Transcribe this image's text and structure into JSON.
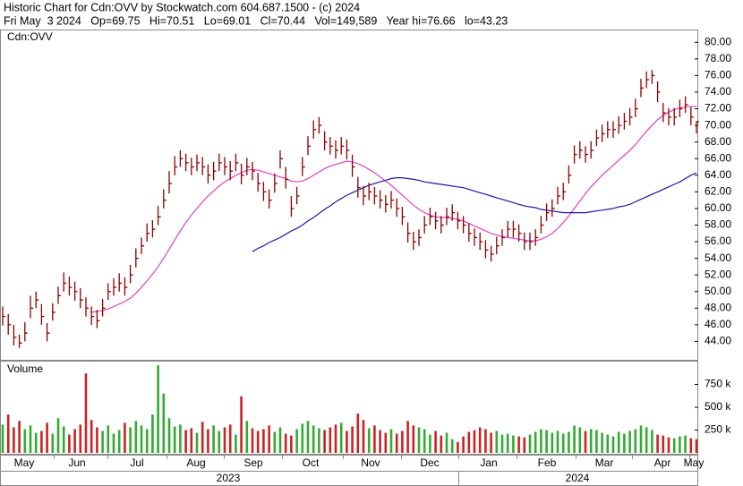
{
  "header": {
    "title": "Historic Chart for Cdn:OVV by Stockwatch.com 604.687.1500 - (c) 2024",
    "quote": "Fri May  3 2024   Op=69.75   Hi=70.51   Lo=69.01   Cl=70.44   Vol=149,589   Year hi=76.66   lo=43.23"
  },
  "time_axis": {
    "months": [
      "May",
      "Jun",
      "Jul",
      "Aug",
      "Sep",
      "Oct",
      "Nov",
      "Dec",
      "Jan",
      "Feb",
      "Mar",
      "Apr",
      "May"
    ],
    "years": [
      "2023",
      "2024"
    ]
  },
  "chart_data": [
    {
      "type": "ohlc",
      "title": "Cdn:OVV",
      "color": "#8b0000",
      "ylim": [
        42,
        81
      ],
      "yticks": [
        {
          "value": 44,
          "label": "44.00"
        },
        {
          "value": 46,
          "label": "46.00"
        },
        {
          "value": 48,
          "label": "48.00"
        },
        {
          "value": 50,
          "label": "50.00"
        },
        {
          "value": 52,
          "label": "52.00"
        },
        {
          "value": 54,
          "label": "54.00"
        },
        {
          "value": 56,
          "label": "56.00"
        },
        {
          "value": 58,
          "label": "58.00"
        },
        {
          "value": 60,
          "label": "60.00"
        },
        {
          "value": 62,
          "label": "62.00"
        },
        {
          "value": 64,
          "label": "64.00"
        },
        {
          "value": 66,
          "label": "66.00"
        },
        {
          "value": 68,
          "label": "68.00"
        },
        {
          "value": 70,
          "label": "70.00"
        },
        {
          "value": 72,
          "label": "72.00"
        },
        {
          "value": 74,
          "label": "74.00"
        },
        {
          "value": 76,
          "label": "76.00"
        },
        {
          "value": 78,
          "label": "78.00"
        },
        {
          "value": 80,
          "label": "80.00"
        }
      ],
      "high": [
        48.2,
        47.3,
        46,
        44.8,
        46.3,
        49.5,
        50,
        48.5,
        46.2,
        48.6,
        50.6,
        52.3,
        51.8,
        51.2,
        50.4,
        49.3,
        48.2,
        47.8,
        49.1,
        51,
        51.6,
        52.2,
        51.7,
        53.2,
        55.2,
        56.5,
        58.2,
        58.6,
        60.3,
        62.3,
        64.5,
        66.3,
        67,
        66.6,
        66.1,
        66.5,
        66.2,
        65.3,
        65.6,
        66.6,
        66.2,
        65.7,
        66.6,
        65.4,
        66.1,
        65.6,
        64.3,
        63.2,
        62.3,
        64.2,
        67,
        65,
        61.5,
        62.6,
        66.2,
        68.7,
        70.6,
        71,
        69.3,
        68.6,
        68.2,
        68.6,
        68.3,
        66.5,
        63.8,
        62.7,
        63.1,
        62.6,
        62.2,
        61.6,
        62.1,
        61.2,
        60.2,
        58.3,
        57.2,
        57.5,
        59.1,
        60.1,
        59.6,
        59.1,
        60.1,
        60.5,
        59.6,
        59.1,
        58.2,
        57.6,
        57.1,
        56.2,
        55.5,
        56.6,
        57.5,
        58.5,
        58.5,
        58.1,
        57.1,
        57.1,
        57.5,
        59.1,
        60.6,
        61.1,
        62.6,
        63.1,
        65.2,
        67.6,
        68.1,
        67.5,
        68.1,
        69.5,
        70.1,
        70.5,
        70.5,
        71.1,
        71.5,
        72.1,
        73.2,
        75.6,
        76.5,
        76.66,
        75.3,
        72.7,
        72.1,
        72.1,
        73.1,
        73.5,
        72.2,
        70.51
      ],
      "low": [
        45.9,
        44.8,
        43.5,
        43.23,
        44,
        46.8,
        48,
        46,
        44,
        46.5,
        48.5,
        50,
        49.5,
        48.9,
        48,
        47,
        46,
        45.6,
        47,
        49,
        49.5,
        50,
        49.5,
        51,
        52.9,
        54.5,
        56,
        56.5,
        58,
        60,
        61.8,
        64,
        65,
        64.5,
        64,
        64.5,
        64,
        63,
        63.4,
        64.5,
        64,
        63.4,
        64.5,
        62.9,
        64,
        63.4,
        62,
        60.9,
        60,
        61.9,
        64.8,
        62.4,
        59,
        60.5,
        63.9,
        66.4,
        68.4,
        69,
        67,
        66.5,
        66,
        66.5,
        65.9,
        63.8,
        61.3,
        60.4,
        61,
        60.5,
        60,
        59.5,
        60,
        59,
        58,
        55.9,
        55,
        55.5,
        57,
        58,
        57.5,
        57,
        58,
        58.5,
        57.5,
        57,
        56,
        55.5,
        55,
        54,
        53.6,
        54.5,
        55.5,
        56.5,
        56.5,
        56,
        55,
        55,
        55.5,
        57,
        58.5,
        59,
        60.5,
        61,
        63,
        65.4,
        66,
        65.5,
        66,
        67.5,
        68,
        68.5,
        68.5,
        69,
        69.5,
        70,
        71,
        73.4,
        74.5,
        75,
        72.8,
        70.4,
        70,
        70,
        71,
        71.5,
        70,
        69.01
      ],
      "close": [
        47,
        46,
        44.5,
        43.8,
        45,
        48,
        49,
        47,
        45,
        47.5,
        49.5,
        51,
        50.5,
        50,
        49,
        48,
        47,
        46.5,
        48,
        50,
        50.5,
        51,
        50.5,
        52,
        54,
        55.5,
        57,
        57.5,
        59,
        61,
        63,
        65,
        66,
        65.5,
        65,
        65.5,
        65,
        64,
        64.5,
        65.5,
        65,
        64.5,
        65.5,
        64,
        65,
        64.5,
        63,
        62,
        61,
        63,
        66,
        63.5,
        60,
        61.5,
        65,
        67.5,
        69.5,
        70,
        68,
        67.5,
        67,
        67.5,
        67,
        65,
        62.5,
        61.5,
        62,
        61.5,
        61,
        60.5,
        61,
        60,
        59,
        57,
        56,
        56.5,
        58,
        59,
        58.5,
        58,
        59,
        59.5,
        58.5,
        58,
        57,
        56.5,
        56,
        55,
        54.5,
        55.5,
        56.5,
        57.5,
        57.5,
        57,
        56,
        56,
        56.5,
        58,
        59.5,
        60,
        61.5,
        62,
        64,
        66.5,
        67,
        66.5,
        67,
        68.5,
        69,
        69.5,
        69.5,
        70,
        70.5,
        71,
        72,
        74.5,
        75.5,
        76,
        74,
        71.5,
        71,
        71,
        72,
        72.5,
        71,
        70.44
      ],
      "series": [
        {
          "color": "#e040c0",
          "values": [
            null,
            null,
            null,
            null,
            null,
            null,
            null,
            null,
            null,
            null,
            null,
            null,
            null,
            null,
            null,
            null,
            47.5,
            47.6,
            47.7,
            47.9,
            48.2,
            48.5,
            48.8,
            49.2,
            49.8,
            50.5,
            51.3,
            52.1,
            53,
            54,
            55.1,
            56.2,
            57.3,
            58.3,
            59.2,
            60,
            60.8,
            61.5,
            62.1,
            62.7,
            63.2,
            63.6,
            64,
            64.3,
            64.6,
            64.7,
            64.6,
            64.4,
            64.2,
            64,
            63.8,
            63.6,
            63.3,
            63.2,
            63.3,
            63.6,
            64,
            64.4,
            64.8,
            65.1,
            65.3,
            65.5,
            65.7,
            65.6,
            65.4,
            65.1,
            64.7,
            64.3,
            63.8,
            63.3,
            62.8,
            62.2,
            61.6,
            61,
            60.4,
            59.9,
            59.5,
            59.2,
            59,
            58.9,
            58.9,
            58.8,
            58.7,
            58.5,
            58.2,
            57.9,
            57.6,
            57.3,
            57,
            56.8,
            56.6,
            56.5,
            56.4,
            56.3,
            56.2,
            56.1,
            56.1,
            56.3,
            56.6,
            57,
            57.6,
            58.3,
            59.1,
            60,
            60.9,
            61.8,
            62.6,
            63.3,
            64,
            64.6,
            65.2,
            65.8,
            66.4,
            67,
            67.7,
            68.5,
            69.3,
            70,
            70.7,
            71.2,
            71.6,
            71.9,
            72.1,
            72.2,
            72.3,
            72.3
          ]
        },
        {
          "color": "#1a1aa0",
          "values": [
            null,
            null,
            null,
            null,
            null,
            null,
            null,
            null,
            null,
            null,
            null,
            null,
            null,
            null,
            null,
            null,
            null,
            null,
            null,
            null,
            null,
            null,
            null,
            null,
            null,
            null,
            null,
            null,
            null,
            null,
            null,
            null,
            null,
            null,
            null,
            null,
            null,
            null,
            null,
            null,
            null,
            null,
            null,
            null,
            null,
            54.8,
            55.2,
            55.5,
            55.9,
            56.2,
            56.5,
            56.9,
            57.3,
            57.6,
            58,
            58.5,
            58.9,
            59.4,
            59.9,
            60.3,
            60.8,
            61.2,
            61.6,
            61.9,
            62.2,
            62.5,
            62.8,
            63,
            63.2,
            63.4,
            63.6,
            63.7,
            63.7,
            63.6,
            63.5,
            63.4,
            63.2,
            63.1,
            63,
            62.9,
            62.8,
            62.7,
            62.6,
            62.5,
            62.3,
            62.1,
            61.9,
            61.7,
            61.5,
            61.3,
            61.1,
            60.9,
            60.7,
            60.5,
            60.3,
            60.2,
            60.1,
            59.9,
            59.8,
            59.7,
            59.6,
            59.5,
            59.5,
            59.5,
            59.5,
            59.5,
            59.6,
            59.7,
            59.8,
            59.9,
            60,
            60.2,
            60.3,
            60.5,
            60.8,
            61.1,
            61.4,
            61.7,
            62,
            62.3,
            62.6,
            62.9,
            63.2,
            63.6,
            64,
            64.3
          ]
        }
      ]
    },
    {
      "type": "volume",
      "title": "Volume",
      "up_color": "#33aa33",
      "down_color": "#cc2222",
      "ylim": [
        0,
        1000000
      ],
      "yticks": [
        {
          "value": 250000,
          "label": "250 k"
        },
        {
          "value": 500000,
          "label": "500 k"
        },
        {
          "value": 750000,
          "label": "750 k"
        }
      ],
      "values": [
        310000,
        420000,
        280000,
        350000,
        260000,
        300000,
        220000,
        240000,
        330000,
        210000,
        380000,
        290000,
        200000,
        260000,
        310000,
        870000,
        360000,
        280000,
        240000,
        300000,
        210000,
        250000,
        330000,
        280000,
        350000,
        300000,
        260000,
        420000,
        960000,
        650000,
        380000,
        290000,
        310000,
        250000,
        270000,
        220000,
        340000,
        260000,
        300000,
        240000,
        280000,
        310000,
        200000,
        620000,
        350000,
        270000,
        240000,
        260000,
        300000,
        230000,
        280000,
        210000,
        190000,
        260000,
        320000,
        350000,
        300000,
        270000,
        250000,
        280000,
        310000,
        330000,
        240000,
        290000,
        430000,
        360000,
        270000,
        300000,
        250000,
        220000,
        260000,
        210000,
        240000,
        350000,
        300000,
        280000,
        260000,
        200000,
        240000,
        190000,
        220000,
        150000,
        120000,
        180000,
        230000,
        250000,
        280000,
        260000,
        220000,
        240000,
        200000,
        210000,
        190000,
        180000,
        170000,
        200000,
        230000,
        260000,
        250000,
        220000,
        240000,
        210000,
        230000,
        300000,
        280000,
        240000,
        260000,
        250000,
        220000,
        200000,
        180000,
        230000,
        210000,
        240000,
        260000,
        300000,
        280000,
        250000,
        200000,
        190000,
        170000,
        160000,
        180000,
        190000,
        160000,
        150000
      ]
    }
  ]
}
